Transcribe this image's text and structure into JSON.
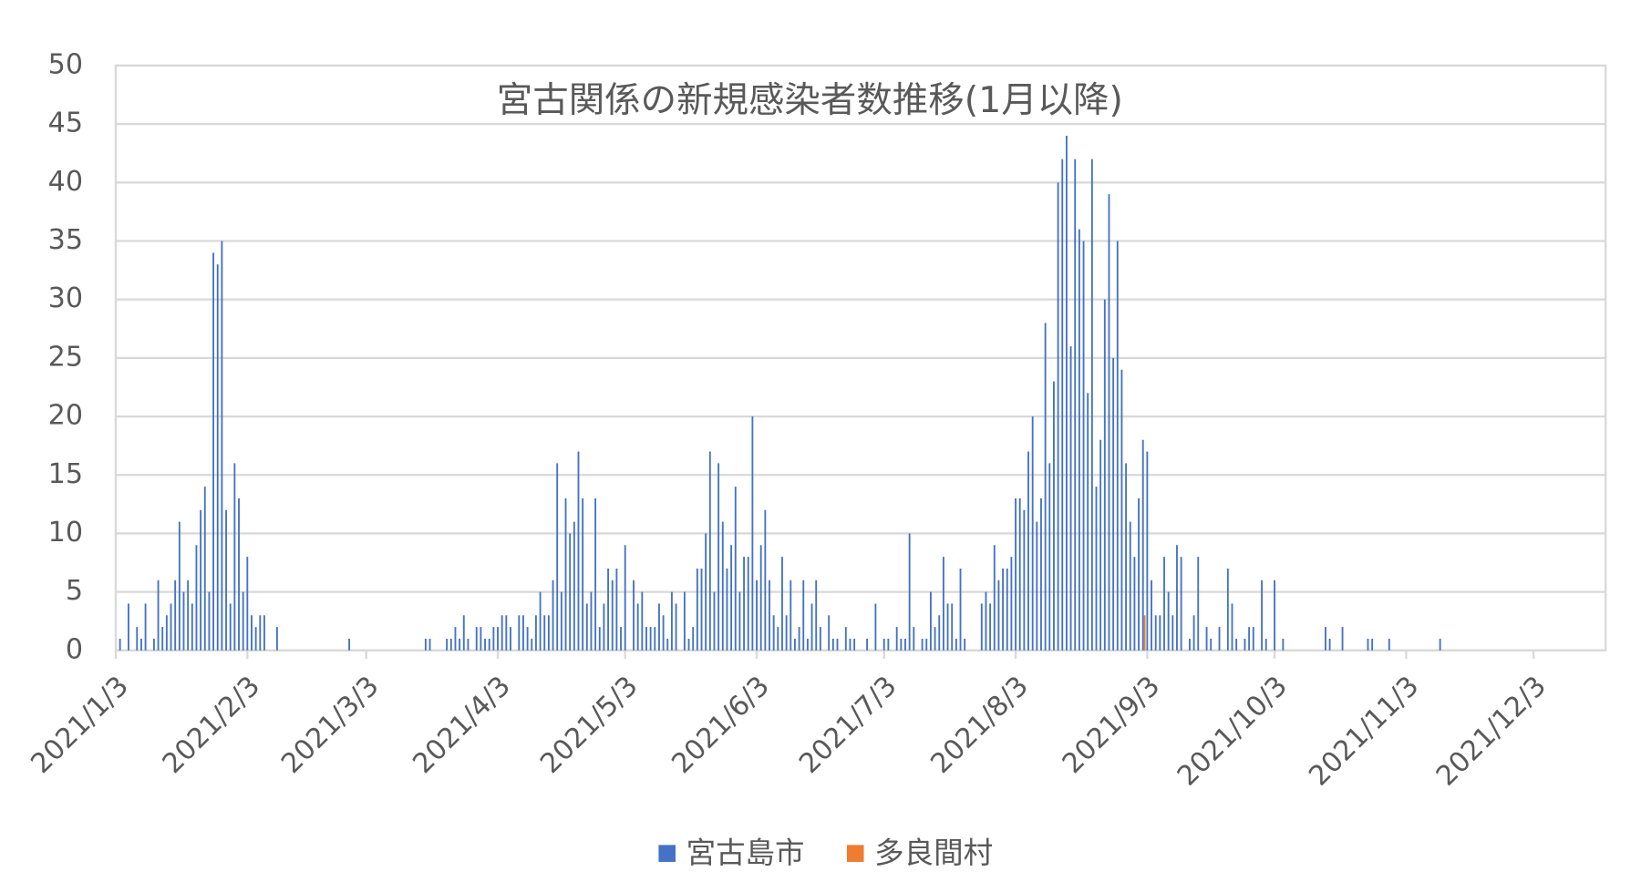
{
  "chart_data": {
    "type": "bar",
    "title": "宮古関係の新規感染者数推移(1月以降)",
    "xlim": [
      "2021/1/3",
      "2021/12/20"
    ],
    "xticks": [
      "2021/1/3",
      "2021/2/3",
      "2021/3/3",
      "2021/4/3",
      "2021/5/3",
      "2021/6/3",
      "2021/7/3",
      "2021/8/3",
      "2021/9/3",
      "2021/10/3",
      "2021/11/3",
      "2021/12/3"
    ],
    "ylim": [
      0,
      50
    ],
    "yticks": [
      0,
      5,
      10,
      15,
      20,
      25,
      30,
      35,
      40,
      45,
      50
    ],
    "grid": true,
    "series": [
      {
        "name": "宮古島市",
        "color": "#4472c4",
        "x": [
          "2021/1/4",
          "2021/1/6",
          "2021/1/8",
          "2021/1/9",
          "2021/1/10",
          "2021/1/12",
          "2021/1/13",
          "2021/1/14",
          "2021/1/15",
          "2021/1/16",
          "2021/1/17",
          "2021/1/18",
          "2021/1/19",
          "2021/1/20",
          "2021/1/21",
          "2021/1/22",
          "2021/1/23",
          "2021/1/24",
          "2021/1/25",
          "2021/1/26",
          "2021/1/27",
          "2021/1/28",
          "2021/1/29",
          "2021/1/30",
          "2021/1/31",
          "2021/2/1",
          "2021/2/2",
          "2021/2/3",
          "2021/2/4",
          "2021/2/5",
          "2021/2/6",
          "2021/2/7",
          "2021/2/10",
          "2021/2/27",
          "2021/3/17",
          "2021/3/18",
          "2021/3/22",
          "2021/3/23",
          "2021/3/24",
          "2021/3/25",
          "2021/3/26",
          "2021/3/27",
          "2021/3/29",
          "2021/3/30",
          "2021/3/31",
          "2021/4/1",
          "2021/4/2",
          "2021/4/3",
          "2021/4/4",
          "2021/4/5",
          "2021/4/6",
          "2021/4/8",
          "2021/4/9",
          "2021/4/10",
          "2021/4/11",
          "2021/4/12",
          "2021/4/13",
          "2021/4/14",
          "2021/4/15",
          "2021/4/16",
          "2021/4/17",
          "2021/4/18",
          "2021/4/19",
          "2021/4/20",
          "2021/4/21",
          "2021/4/22",
          "2021/4/23",
          "2021/4/24",
          "2021/4/25",
          "2021/4/26",
          "2021/4/27",
          "2021/4/28",
          "2021/4/29",
          "2021/4/30",
          "2021/5/1",
          "2021/5/2",
          "2021/5/3",
          "2021/5/5",
          "2021/5/6",
          "2021/5/7",
          "2021/5/8",
          "2021/5/9",
          "2021/5/10",
          "2021/5/11",
          "2021/5/12",
          "2021/5/13",
          "2021/5/14",
          "2021/5/15",
          "2021/5/17",
          "2021/5/18",
          "2021/5/19",
          "2021/5/20",
          "2021/5/21",
          "2021/5/22",
          "2021/5/23",
          "2021/5/24",
          "2021/5/25",
          "2021/5/26",
          "2021/5/27",
          "2021/5/28",
          "2021/5/29",
          "2021/5/30",
          "2021/5/31",
          "2021/6/1",
          "2021/6/2",
          "2021/6/3",
          "2021/6/4",
          "2021/6/5",
          "2021/6/6",
          "2021/6/7",
          "2021/6/8",
          "2021/6/9",
          "2021/6/10",
          "2021/6/11",
          "2021/6/12",
          "2021/6/13",
          "2021/6/14",
          "2021/6/15",
          "2021/6/16",
          "2021/6/17",
          "2021/6/18",
          "2021/6/20",
          "2021/6/21",
          "2021/6/22",
          "2021/6/24",
          "2021/6/25",
          "2021/6/26",
          "2021/6/29",
          "2021/7/1",
          "2021/7/3",
          "2021/7/4",
          "2021/7/6",
          "2021/7/7",
          "2021/7/8",
          "2021/7/9",
          "2021/7/10",
          "2021/7/12",
          "2021/7/13",
          "2021/7/14",
          "2021/7/15",
          "2021/7/16",
          "2021/7/17",
          "2021/7/18",
          "2021/7/19",
          "2021/7/20",
          "2021/7/21",
          "2021/7/22",
          "2021/7/26",
          "2021/7/27",
          "2021/7/28",
          "2021/7/29",
          "2021/7/30",
          "2021/7/31",
          "2021/8/1",
          "2021/8/2",
          "2021/8/3",
          "2021/8/4",
          "2021/8/5",
          "2021/8/6",
          "2021/8/7",
          "2021/8/8",
          "2021/8/9",
          "2021/8/10",
          "2021/8/11",
          "2021/8/12",
          "2021/8/13",
          "2021/8/14",
          "2021/8/15",
          "2021/8/16",
          "2021/8/17",
          "2021/8/18",
          "2021/8/19",
          "2021/8/20",
          "2021/8/21",
          "2021/8/22",
          "2021/8/23",
          "2021/8/24",
          "2021/8/25",
          "2021/8/26",
          "2021/8/27",
          "2021/8/28",
          "2021/8/29",
          "2021/8/30",
          "2021/8/31",
          "2021/9/1",
          "2021/9/2",
          "2021/9/3",
          "2021/9/4",
          "2021/9/5",
          "2021/9/6",
          "2021/9/7",
          "2021/9/8",
          "2021/9/9",
          "2021/9/10",
          "2021/9/11",
          "2021/9/13",
          "2021/9/14",
          "2021/9/15",
          "2021/9/17",
          "2021/9/18",
          "2021/9/20",
          "2021/9/22",
          "2021/9/23",
          "2021/9/24",
          "2021/9/26",
          "2021/9/27",
          "2021/9/28",
          "2021/9/30",
          "2021/10/1",
          "2021/10/3",
          "2021/10/5",
          "2021/10/15",
          "2021/10/16",
          "2021/10/19",
          "2021/10/25",
          "2021/10/26",
          "2021/10/30",
          "2021/11/11"
        ],
        "values": [
          1,
          4,
          2,
          1,
          4,
          1,
          6,
          2,
          3,
          4,
          6,
          11,
          5,
          6,
          4,
          9,
          12,
          14,
          5,
          34,
          33,
          35,
          12,
          4,
          16,
          13,
          5,
          8,
          3,
          2,
          3,
          3,
          2,
          1,
          1,
          1,
          1,
          1,
          2,
          1,
          3,
          1,
          2,
          2,
          1,
          1,
          2,
          2,
          3,
          3,
          2,
          3,
          3,
          2,
          1,
          3,
          5,
          3,
          3,
          6,
          16,
          5,
          13,
          10,
          11,
          17,
          13,
          4,
          5,
          13,
          2,
          4,
          7,
          6,
          7,
          2,
          9,
          6,
          4,
          5,
          2,
          2,
          2,
          4,
          3,
          1,
          5,
          4,
          5,
          1,
          2,
          7,
          7,
          10,
          17,
          5,
          16,
          11,
          7,
          9,
          14,
          5,
          8,
          8,
          20,
          6,
          9,
          12,
          6,
          3,
          2,
          8,
          3,
          6,
          1,
          2,
          6,
          1,
          4,
          6,
          2,
          3,
          1,
          1,
          2,
          1,
          1,
          1,
          4,
          1,
          1,
          2,
          1,
          1,
          10,
          2,
          1,
          1,
          5,
          2,
          3,
          8,
          4,
          4,
          1,
          7,
          1,
          4,
          5,
          4,
          9,
          6,
          7,
          7,
          8,
          13,
          13,
          12,
          17,
          20,
          11,
          13,
          28,
          16,
          23,
          40,
          42,
          44,
          26,
          42,
          36,
          35,
          22,
          42,
          14,
          18,
          30,
          39,
          25,
          35,
          24,
          16,
          11,
          8,
          13,
          18,
          17,
          6,
          3,
          3,
          8,
          5,
          3,
          9,
          8,
          1,
          3,
          8,
          2,
          1,
          2,
          7,
          4,
          1,
          1,
          2,
          2,
          6,
          1,
          6,
          1,
          2,
          1,
          2,
          1,
          1,
          1,
          1
        ]
      },
      {
        "name": "多良間村",
        "color": "#ed7d31",
        "x": [
          "2021/9/2"
        ],
        "values": [
          3
        ]
      }
    ]
  }
}
